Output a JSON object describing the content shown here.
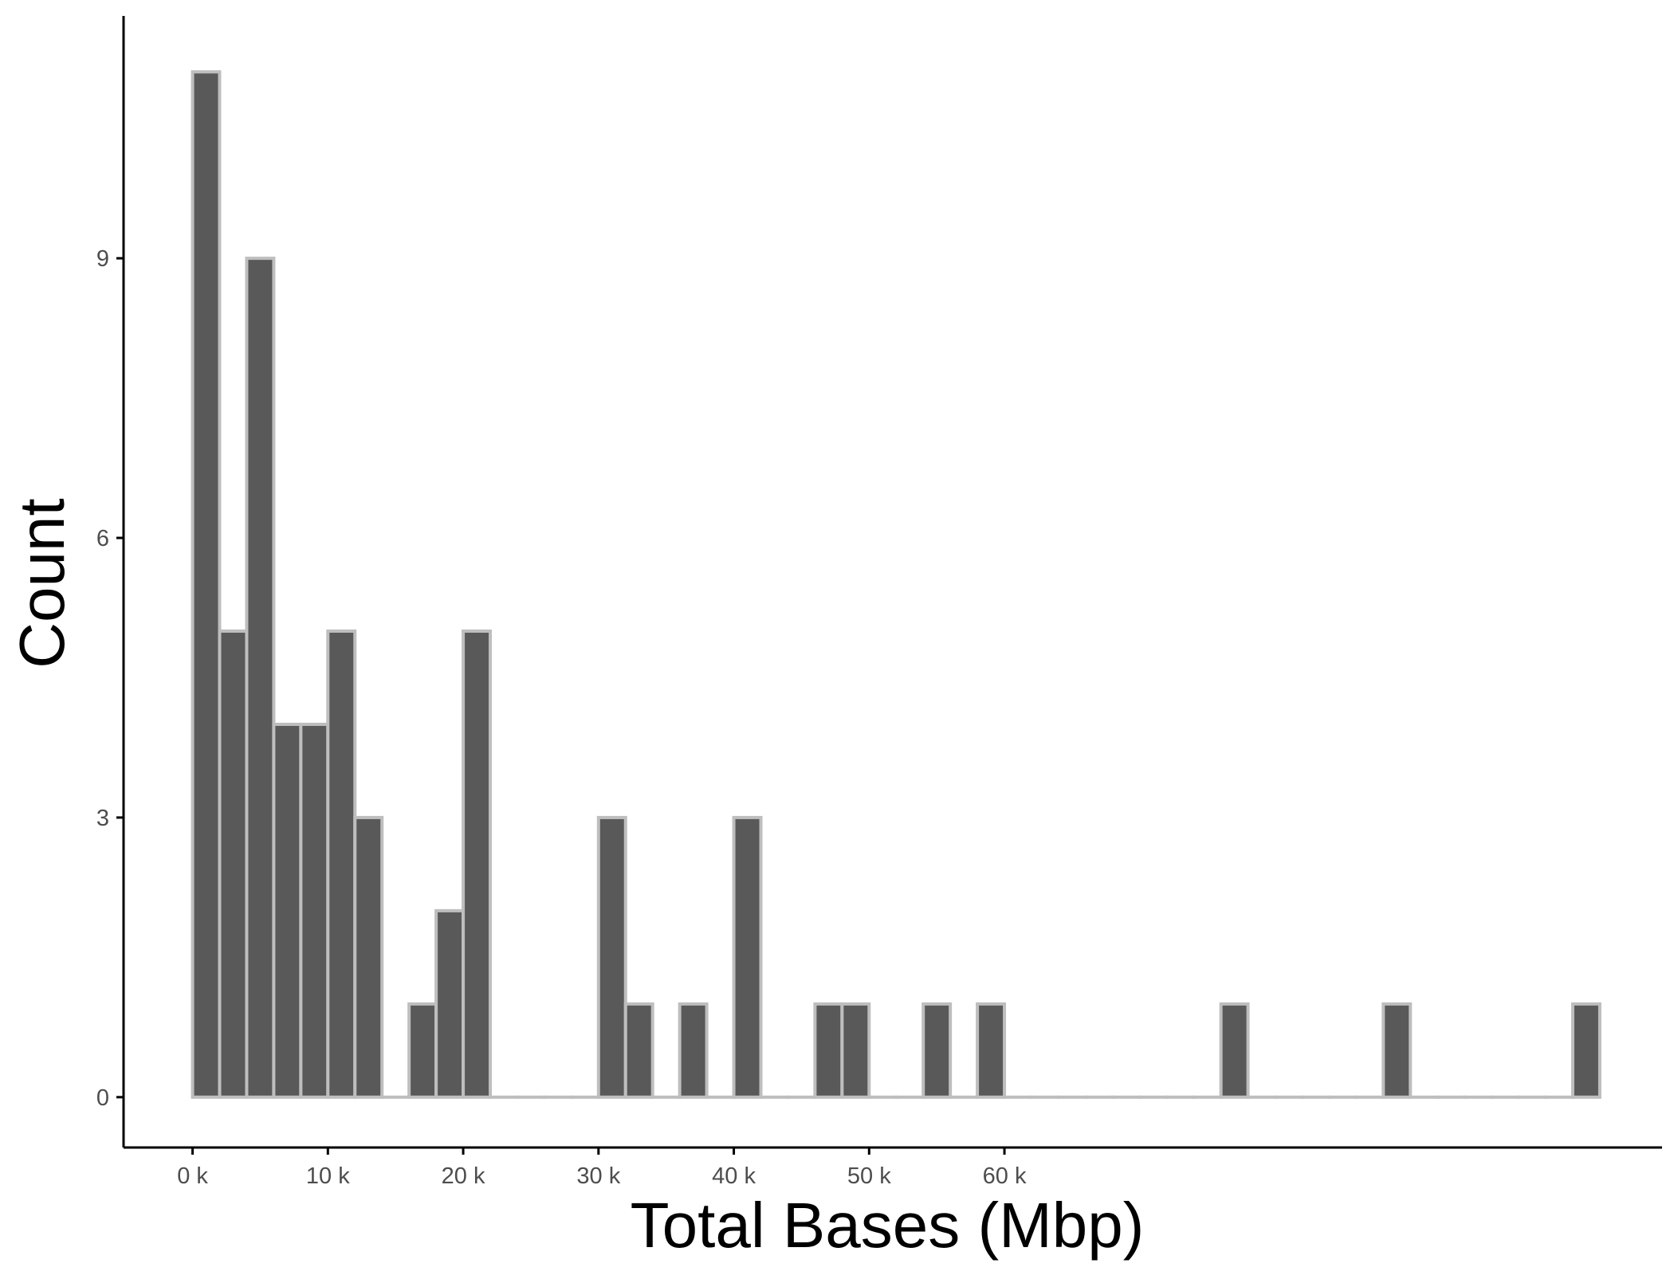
{
  "chart_data": {
    "type": "bar",
    "subtype": "histogram",
    "title": "",
    "xlabel": "Total Bases (Mbp)",
    "ylabel": "Count",
    "x_tick_values": [
      0,
      10000,
      20000,
      30000,
      40000,
      50000,
      60000
    ],
    "x_tick_labels": [
      "0 k",
      "10 k",
      "20 k",
      "30 k",
      "40 k",
      "50 k",
      "60 k"
    ],
    "y_ticks": [
      0,
      3,
      6,
      9
    ],
    "x_range": [
      -5100,
      108600
    ],
    "y_range": [
      -0.54,
      11.6
    ],
    "bin_start": 0,
    "bin_width": 2000,
    "counts": [
      11,
      5,
      9,
      4,
      4,
      5,
      3,
      0,
      1,
      2,
      5,
      0,
      0,
      0,
      0,
      3,
      1,
      0,
      1,
      0,
      3,
      0,
      0,
      1,
      1,
      0,
      0,
      1,
      0,
      1,
      0,
      0,
      0,
      0,
      0,
      0,
      0,
      0,
      1,
      0,
      0,
      0,
      0,
      0,
      1,
      0,
      0,
      0,
      0,
      0,
      0,
      1
    ],
    "grid": false,
    "legend": "none",
    "colors": {
      "bar_fill": "#595959",
      "bar_outline": "#bebebe",
      "axis_line": "#000000",
      "tick_label": "#4d4d4d"
    }
  }
}
